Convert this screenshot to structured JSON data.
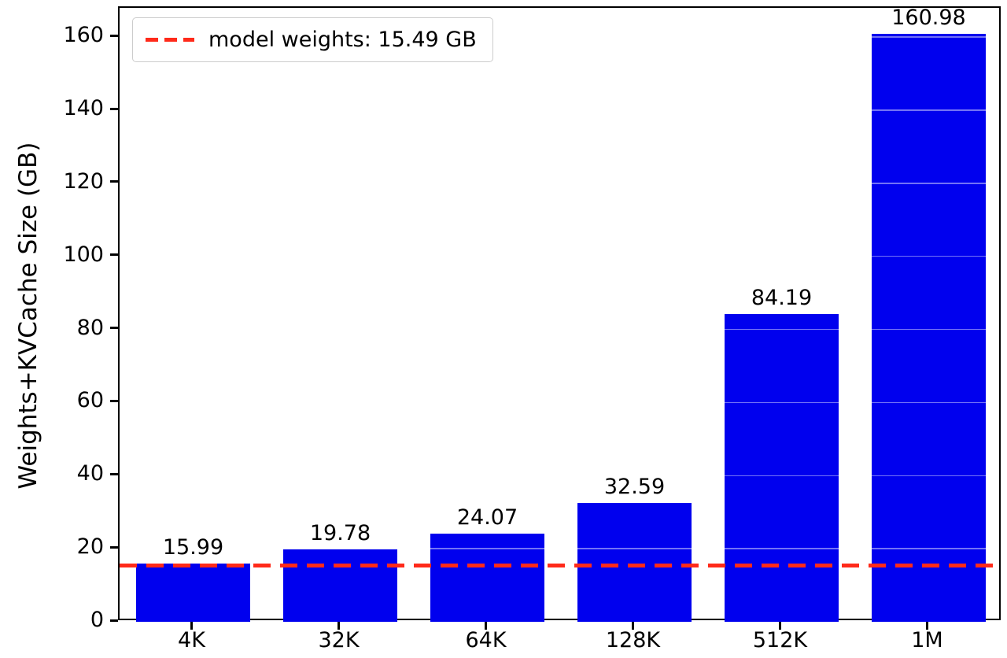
{
  "chart_data": {
    "type": "bar",
    "title": "",
    "xlabel": "",
    "ylabel": "Weights+KVCache Size (GB)",
    "categories": [
      "4K",
      "32K",
      "64K",
      "128K",
      "512K",
      "1M"
    ],
    "values": [
      15.99,
      19.78,
      24.07,
      32.59,
      84.19,
      160.98
    ],
    "bar_labels": [
      "15.99",
      "19.78",
      "24.07",
      "32.59",
      "84.19",
      "160.98"
    ],
    "ylim": [
      0,
      168
    ],
    "yticks": [
      0,
      20,
      40,
      60,
      80,
      100,
      120,
      140,
      160
    ],
    "grid": false,
    "bar_color": "#0000ee",
    "legend_position": "upper-left",
    "reference_line": {
      "value": 15.49,
      "label": "model weights: 15.49 GB",
      "color": "#ff2a1a",
      "style": "dashed"
    }
  }
}
